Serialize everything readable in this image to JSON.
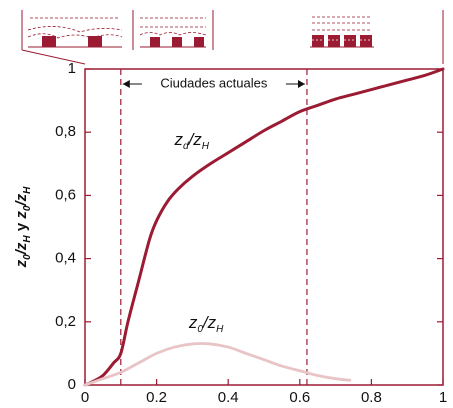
{
  "chart_data": {
    "type": "line",
    "x_ticks": [
      "0",
      "0.2",
      "0.4",
      "0.6",
      "0.8",
      "1"
    ],
    "x_tick_values": [
      0,
      0.2,
      0.4,
      0.6,
      0.8,
      1
    ],
    "y_ticks": [
      "0",
      "0,2",
      "0,4",
      "0,6",
      "0,8",
      "1"
    ],
    "y_tick_values": [
      0,
      0.2,
      0.4,
      0.6,
      0.8,
      1
    ],
    "xlim": [
      0,
      1
    ],
    "ylim": [
      0,
      1
    ],
    "ylabel": {
      "z1": "z",
      "s1": "0",
      "sep1": "/",
      "z2": "z",
      "s2": "H",
      "mid": " y ",
      "z3": "z",
      "s3": "0",
      "sep2": "/",
      "z4": "z",
      "s4": "H"
    },
    "annotation": {
      "text": "Ciudades actuales",
      "x_range": [
        0.1,
        0.62
      ]
    },
    "series": [
      {
        "label": {
          "z1": "z",
          "s1": "d",
          "sep": "/",
          "z2": "z",
          "s2": "H"
        },
        "label_at": [
          0.25,
          0.76
        ],
        "color": "#9b1b32",
        "x": [
          0,
          0.02,
          0.05,
          0.08,
          0.1,
          0.12,
          0.15,
          0.18,
          0.2,
          0.23,
          0.26,
          0.3,
          0.35,
          0.4,
          0.45,
          0.5,
          0.55,
          0.6,
          0.65,
          0.7,
          0.75,
          0.8,
          0.85,
          0.9,
          0.95,
          1.0
        ],
        "values": [
          0,
          0.01,
          0.03,
          0.07,
          0.1,
          0.2,
          0.33,
          0.46,
          0.52,
          0.58,
          0.62,
          0.66,
          0.7,
          0.735,
          0.77,
          0.805,
          0.835,
          0.865,
          0.885,
          0.905,
          0.92,
          0.935,
          0.95,
          0.965,
          0.98,
          1.0
        ]
      },
      {
        "label": {
          "z1": "z",
          "s1": "0",
          "sep": "/",
          "z2": "z",
          "s2": "H"
        },
        "label_at": [
          0.29,
          0.18
        ],
        "color": "#e8c4c6",
        "x": [
          0,
          0.05,
          0.1,
          0.15,
          0.2,
          0.25,
          0.3,
          0.35,
          0.4,
          0.45,
          0.5,
          0.55,
          0.6,
          0.65,
          0.7,
          0.74
        ],
        "values": [
          0,
          0.02,
          0.04,
          0.07,
          0.1,
          0.12,
          0.13,
          0.13,
          0.12,
          0.1,
          0.08,
          0.06,
          0.045,
          0.03,
          0.02,
          0.015
        ]
      }
    ],
    "colors": {
      "axis": "#9b1b32",
      "guide": "#9b1b32"
    },
    "icons": [
      "sparse-buildings-icon",
      "medium-buildings-icon",
      "dense-buildings-icon"
    ]
  }
}
